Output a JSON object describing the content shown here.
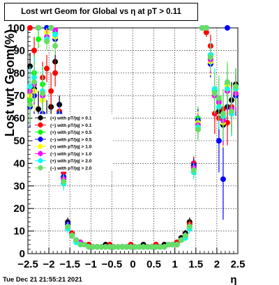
{
  "title": "Lost wrt Geom for Global vs   η at pT > 0.11",
  "timestamp": "Tue Dec 21 21:55:21 2021",
  "chart_data": {
    "type": "scatter",
    "title": "Lost wrt Geom for Global vs   η at pT > 0.11",
    "xlabel": "η",
    "ylabel": "Lost wrt Geom(%)",
    "xlim": [
      -2.5,
      2.5
    ],
    "ylim": [
      0,
      100
    ],
    "x_ticks": [
      "−2.5",
      "−2",
      "−1.5",
      "−1",
      "−0.5",
      "0",
      "0.5",
      "1",
      "1.5",
      "2",
      "2.5"
    ],
    "y_ticks": [
      "0",
      "10",
      "20",
      "30",
      "40",
      "50",
      "60",
      "70",
      "80",
      "90",
      "100"
    ],
    "grid": true,
    "legend_position": "left-middle",
    "series": [
      {
        "name": "(+) with pT/|q| > 0.1",
        "color": "#000000",
        "x": [
          -2.45,
          -2.35,
          -2.25,
          -2.15,
          -2.05,
          -1.95,
          -1.85,
          -1.75,
          -1.65,
          -1.55,
          -1.45,
          -1.35,
          -1.25,
          -1.15,
          -1.05,
          -0.95,
          -0.85,
          -0.75,
          -0.65,
          -0.55,
          -0.45,
          -0.35,
          -0.25,
          -0.15,
          -0.05,
          0.05,
          0.15,
          0.25,
          0.35,
          0.45,
          0.55,
          0.65,
          0.75,
          0.85,
          0.95,
          1.05,
          1.15,
          1.25,
          1.35,
          1.45,
          1.55,
          1.65,
          1.75,
          1.85,
          1.95,
          2.05,
          2.15,
          2.25,
          2.35,
          2.45
        ],
        "y": [
          83,
          73,
          64,
          68,
          60,
          65,
          85,
          66,
          40,
          14,
          9,
          6,
          5,
          4,
          4,
          3,
          3,
          3,
          4,
          3,
          3,
          3,
          3,
          3,
          3,
          3,
          3,
          4,
          3,
          3,
          4,
          3,
          4,
          4,
          4,
          5,
          7,
          9,
          14,
          40,
          58,
          100,
          100,
          88,
          72,
          63,
          57,
          65,
          68,
          75
        ],
        "err": [
          6,
          7,
          8,
          7,
          8,
          8,
          5,
          4,
          3,
          2,
          1.5,
          1,
          1,
          1,
          1,
          1,
          1,
          1,
          1,
          1,
          1,
          1,
          1,
          1,
          1,
          1,
          1,
          1,
          1,
          1,
          1,
          1,
          1,
          1,
          1,
          1,
          1,
          1.5,
          2,
          3,
          4,
          0,
          0,
          5,
          8,
          9,
          10,
          9,
          8,
          7
        ]
      },
      {
        "name": "(−) with pT/|q| > 0.1",
        "color": "#ff0000",
        "x": [
          -2.45,
          -2.35,
          -2.25,
          -2.15,
          -2.05,
          -1.95,
          -1.85,
          -1.75,
          -1.65,
          -1.55,
          -1.45,
          -1.35,
          -1.25,
          -1.15,
          -1.05,
          -0.95,
          -0.85,
          -0.75,
          -0.65,
          -0.55,
          -0.45,
          -0.35,
          -0.25,
          -0.15,
          -0.05,
          0.05,
          0.15,
          0.25,
          0.35,
          0.45,
          0.55,
          0.65,
          0.75,
          0.85,
          0.95,
          1.05,
          1.15,
          1.25,
          1.35,
          1.45,
          1.55,
          1.65,
          1.75,
          1.85,
          1.95,
          2.05,
          2.15,
          2.25,
          2.35,
          2.45
        ],
        "y": [
          100,
          90,
          100,
          78,
          82,
          72,
          80,
          63,
          36,
          13,
          9,
          6,
          5,
          4,
          4,
          3,
          3,
          3,
          3,
          4,
          3,
          3,
          3,
          3,
          4,
          3,
          3,
          3,
          3,
          3,
          4,
          3,
          3,
          4,
          4,
          5,
          6,
          8,
          13,
          40,
          55,
          100,
          98,
          92,
          62,
          60,
          64,
          58,
          65,
          73
        ],
        "err": [
          0,
          6,
          0,
          7,
          6,
          8,
          6,
          4,
          3,
          2,
          1.5,
          1,
          1,
          1,
          1,
          1,
          1,
          1,
          1,
          1,
          1,
          1,
          1,
          1,
          1,
          1,
          1,
          1,
          1,
          1,
          1,
          1,
          1,
          1,
          1,
          1,
          1,
          1.5,
          2,
          3,
          4,
          0,
          2,
          5,
          9,
          10,
          9,
          10,
          9,
          7
        ]
      },
      {
        "name": "(+) with pT/|q| > 0.5",
        "color": "#00ff00",
        "x": [
          -2.45,
          -2.35,
          -2.25,
          -2.15,
          -2.05,
          -1.95,
          -1.85,
          -1.75,
          -1.65,
          -1.55,
          -1.45,
          -1.35,
          -1.25,
          -1.15,
          -1.05,
          -0.95,
          -0.85,
          -0.75,
          -0.65,
          -0.55,
          -0.45,
          -0.35,
          -0.25,
          -0.15,
          -0.05,
          0.05,
          0.15,
          0.25,
          0.35,
          0.45,
          0.55,
          0.65,
          0.75,
          0.85,
          0.95,
          1.05,
          1.15,
          1.25,
          1.35,
          1.45,
          1.55,
          1.65,
          1.75,
          1.85,
          1.95,
          2.05,
          2.15,
          2.25,
          2.35,
          2.45
        ],
        "y": [
          68,
          80,
          95,
          75,
          100,
          100,
          98,
          61,
          33,
          12,
          8,
          6,
          5,
          4,
          3,
          3,
          3,
          3,
          3,
          3,
          3,
          3,
          3,
          3,
          3,
          3,
          3,
          3,
          3,
          3,
          3,
          3,
          3,
          4,
          4,
          4,
          6,
          8,
          12,
          38,
          60,
          100,
          100,
          86,
          72,
          68,
          60,
          75,
          64,
          74
        ],
        "err": [
          9,
          8,
          4,
          8,
          0,
          0,
          2,
          5,
          3,
          2,
          1.5,
          1,
          1,
          1,
          1,
          1,
          1,
          1,
          1,
          1,
          1,
          1,
          1,
          1,
          1,
          1,
          1,
          1,
          1,
          1,
          1,
          1,
          1,
          1,
          1,
          1,
          1,
          1.5,
          2,
          3,
          5,
          0,
          0,
          6,
          9,
          10,
          11,
          9,
          10,
          8
        ]
      },
      {
        "name": "(−) with pT/|q| > 0.5",
        "color": "#0000ff",
        "x": [
          -2.45,
          -2.35,
          -2.25,
          -2.15,
          -2.05,
          -1.95,
          -1.85,
          -1.75,
          -1.65,
          -1.55,
          -1.45,
          -1.35,
          -1.25,
          -1.15,
          -1.05,
          -0.95,
          -0.85,
          -0.75,
          -0.65,
          -0.55,
          -0.45,
          -0.35,
          -0.25,
          -0.15,
          -0.05,
          0.05,
          0.15,
          0.25,
          0.35,
          0.45,
          0.55,
          0.65,
          0.75,
          0.85,
          0.95,
          1.05,
          1.15,
          1.25,
          1.35,
          1.45,
          1.55,
          1.65,
          1.75,
          1.85,
          1.95,
          2.05,
          2.15,
          2.25,
          2.35,
          2.45
        ],
        "y": [
          65,
          70,
          100,
          62,
          100,
          100,
          95,
          62,
          34,
          13,
          8,
          6,
          5,
          4,
          3,
          3,
          3,
          3,
          3,
          3,
          3,
          3,
          3,
          3,
          3,
          3,
          3,
          3,
          3,
          3,
          3,
          3,
          3,
          4,
          4,
          4,
          6,
          8,
          12,
          39,
          59,
          100,
          100,
          84,
          70,
          50,
          33,
          100,
          62,
          70
        ],
        "err": [
          9,
          9,
          0,
          9,
          0,
          0,
          3,
          5,
          3,
          2,
          1.5,
          1,
          1,
          1,
          1,
          1,
          1,
          1,
          1,
          1,
          1,
          1,
          1,
          1,
          1,
          1,
          1,
          1,
          1,
          1,
          1,
          1,
          1,
          1,
          1,
          1,
          1,
          1.5,
          2,
          3,
          5,
          0,
          0,
          6,
          9,
          14,
          18,
          0,
          10,
          9
        ]
      },
      {
        "name": "(+) with pT/|q| > 1.0",
        "color": "#ffff00",
        "x": [
          -2.45,
          -2.35,
          -2.25,
          -2.15,
          -2.05,
          -1.95,
          -1.85,
          -1.75,
          -1.65,
          -1.55,
          -1.45,
          -1.35,
          -1.25,
          -1.15,
          -1.05,
          -0.95,
          -0.85,
          -0.75,
          -0.65,
          -0.55,
          -0.45,
          -0.35,
          -0.25,
          -0.15,
          -0.05,
          0.05,
          0.15,
          0.25,
          0.35,
          0.45,
          0.55,
          0.65,
          0.75,
          0.85,
          0.95,
          1.05,
          1.15,
          1.25,
          1.35,
          1.45,
          1.55,
          1.65,
          1.75,
          1.85,
          1.95,
          2.05,
          2.15,
          2.25,
          2.35,
          2.45
        ],
        "y": [
          70,
          72,
          100,
          68,
          98,
          100,
          96,
          60,
          32,
          12,
          8,
          5,
          5,
          4,
          3,
          3,
          3,
          3,
          3,
          3,
          3,
          3,
          3,
          3,
          3,
          3,
          3,
          3,
          3,
          3,
          3,
          3,
          3,
          4,
          4,
          4,
          6,
          7,
          12,
          37,
          58,
          100,
          100,
          85,
          71,
          66,
          58,
          74,
          63,
          72
        ],
        "err": [
          9,
          9,
          0,
          9,
          2,
          0,
          3,
          5,
          3,
          2,
          1.5,
          1,
          1,
          1,
          1,
          1,
          1,
          1,
          1,
          1,
          1,
          1,
          1,
          1,
          1,
          1,
          1,
          1,
          1,
          1,
          1,
          1,
          1,
          1,
          1,
          1,
          1,
          1.5,
          2,
          3,
          5,
          0,
          0,
          6,
          9,
          10,
          11,
          9,
          10,
          8
        ]
      },
      {
        "name": "(−) with pT/|q| > 1.0",
        "color": "#ff00ff",
        "x": [
          -2.45,
          -2.35,
          -2.25,
          -2.15,
          -2.05,
          -1.95,
          -1.85,
          -1.75,
          -1.65,
          -1.55,
          -1.45,
          -1.35,
          -1.25,
          -1.15,
          -1.05,
          -0.95,
          -0.85,
          -0.75,
          -0.65,
          -0.55,
          -0.45,
          -0.35,
          -0.25,
          -0.15,
          -0.05,
          0.05,
          0.15,
          0.25,
          0.35,
          0.45,
          0.55,
          0.65,
          0.75,
          0.85,
          0.95,
          1.05,
          1.15,
          1.25,
          1.35,
          1.45,
          1.55,
          1.65,
          1.75,
          1.85,
          1.95,
          2.05,
          2.15,
          2.25,
          2.35,
          2.45
        ],
        "y": [
          72,
          75,
          100,
          70,
          96,
          100,
          99,
          60,
          33,
          12,
          8,
          6,
          5,
          4,
          3,
          3,
          3,
          3,
          3,
          3,
          3,
          3,
          3,
          3,
          3,
          3,
          3,
          3,
          3,
          3,
          3,
          3,
          3,
          4,
          4,
          4,
          6,
          8,
          12,
          38,
          57,
          100,
          100,
          86,
          70,
          67,
          59,
          72,
          64,
          71
        ],
        "err": [
          9,
          9,
          0,
          9,
          3,
          0,
          1,
          5,
          3,
          2,
          1.5,
          1,
          1,
          1,
          1,
          1,
          1,
          1,
          1,
          1,
          1,
          1,
          1,
          1,
          1,
          1,
          1,
          1,
          1,
          1,
          1,
          1,
          1,
          1,
          1,
          1,
          1,
          1.5,
          2,
          3,
          5,
          0,
          0,
          6,
          9,
          10,
          11,
          9,
          10,
          8
        ]
      },
      {
        "name": "(+) with pT/|q| > 2.0",
        "color": "#00ffff",
        "x": [
          -2.45,
          -2.35,
          -2.25,
          -2.15,
          -2.05,
          -1.95,
          -1.85,
          -1.75,
          -1.65,
          -1.55,
          -1.45,
          -1.35,
          -1.25,
          -1.15,
          -1.05,
          -0.95,
          -0.85,
          -0.75,
          -0.65,
          -0.55,
          -0.45,
          -0.35,
          -0.25,
          -0.15,
          -0.05,
          0.05,
          0.15,
          0.25,
          0.35,
          0.45,
          0.55,
          0.65,
          0.75,
          0.85,
          0.95,
          1.05,
          1.15,
          1.25,
          1.35,
          1.45,
          1.55,
          1.65,
          1.75,
          1.85,
          1.95,
          2.05,
          2.15,
          2.25,
          2.35,
          2.45
        ],
        "y": [
          74,
          78,
          100,
          72,
          95,
          100,
          97,
          58,
          31,
          11,
          8,
          5,
          4,
          4,
          3,
          3,
          3,
          3,
          3,
          3,
          3,
          3,
          3,
          3,
          3,
          3,
          3,
          3,
          3,
          3,
          3,
          3,
          3,
          4,
          4,
          4,
          6,
          7,
          11,
          36,
          56,
          100,
          100,
          88,
          73,
          65,
          61,
          73,
          62,
          73
        ],
        "err": [
          9,
          9,
          0,
          9,
          3,
          0,
          2,
          5,
          3,
          2,
          1.5,
          1,
          1,
          1,
          1,
          1,
          1,
          1,
          1,
          1,
          1,
          1,
          1,
          1,
          1,
          1,
          1,
          1,
          1,
          1,
          1,
          1,
          1,
          1,
          1,
          1,
          1,
          1.5,
          2,
          3,
          5,
          0,
          0,
          6,
          9,
          10,
          11,
          9,
          10,
          8
        ]
      },
      {
        "name": "(−) with pT/|q| > 2.0",
        "color": "#66dd66",
        "x": [
          -2.45,
          -2.35,
          -2.25,
          -2.15,
          -2.05,
          -1.95,
          -1.85,
          -1.75,
          -1.65,
          -1.55,
          -1.45,
          -1.35,
          -1.25,
          -1.15,
          -1.05,
          -0.95,
          -0.85,
          -0.75,
          -0.65,
          -0.55,
          -0.45,
          -0.35,
          -0.25,
          -0.15,
          -0.05,
          0.05,
          0.15,
          0.25,
          0.35,
          0.45,
          0.55,
          0.65,
          0.75,
          0.85,
          0.95,
          1.05,
          1.15,
          1.25,
          1.35,
          1.45,
          1.55,
          1.65,
          1.75,
          1.85,
          1.95,
          2.05,
          2.15,
          2.25,
          2.35,
          2.45
        ],
        "y": [
          66,
          76,
          100,
          71,
          94,
          100,
          92,
          59,
          32,
          12,
          8,
          6,
          4,
          4,
          3,
          3,
          3,
          3,
          3,
          3,
          3,
          3,
          3,
          3,
          3,
          3,
          3,
          3,
          3,
          3,
          3,
          3,
          3,
          4,
          4,
          4,
          6,
          8,
          12,
          37,
          55,
          100,
          100,
          87,
          71,
          69,
          62,
          76,
          63,
          74
        ],
        "err": [
          9,
          9,
          0,
          9,
          4,
          0,
          4,
          5,
          3,
          2,
          1.5,
          1,
          1,
          1,
          1,
          1,
          1,
          1,
          1,
          1,
          1,
          1,
          1,
          1,
          1,
          1,
          1,
          1,
          1,
          1,
          1,
          1,
          1,
          1,
          1,
          1,
          1,
          1.5,
          2,
          3,
          5,
          0,
          0,
          6,
          9,
          10,
          11,
          9,
          10,
          8
        ]
      }
    ]
  }
}
